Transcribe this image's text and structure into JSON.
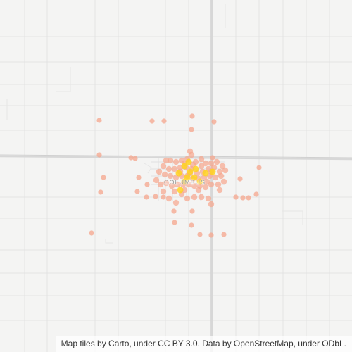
{
  "map": {
    "place_label": "COLUMBUS",
    "attribution": "Map tiles by Carto, under CC BY 3.0. Data by OpenStreetMap, under ODbL.",
    "colors": {
      "background": "#f4f4f3",
      "major_road": "#dcdcdc",
      "minor_road": "#e6e6e6",
      "point_low": "#f6a58c",
      "point_high": "#ffd21f"
    }
  }
}
